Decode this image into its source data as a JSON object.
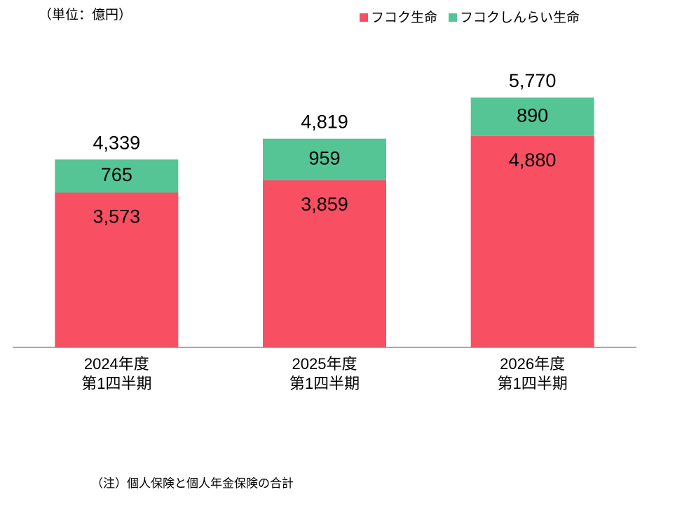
{
  "chart_data": {
    "type": "stacked_bar",
    "unit_label": "（単位：億円）",
    "categories": [
      "2024年度\n第1四半期",
      "2025年度\n第1四半期",
      "2026年度\n第1四半期"
    ],
    "series": [
      {
        "name": "フコク生命",
        "color": "#f94f63",
        "values": [
          3573,
          3859,
          4880
        ],
        "value_labels": [
          "3,573",
          "3,859",
          "4,880"
        ]
      },
      {
        "name": "フコクしんらい生命",
        "color": "#55c595",
        "values": [
          765,
          959,
          890
        ],
        "value_labels": [
          "765",
          "959",
          "890"
        ]
      }
    ],
    "totals": [
      4339,
      4819,
      5770
    ],
    "total_labels": [
      "4,339",
      "4,819",
      "5,770"
    ],
    "ylim": [
      0,
      7000
    ],
    "legend": "top-right",
    "note": "（注）個人保険と個人年金保険の合計"
  }
}
